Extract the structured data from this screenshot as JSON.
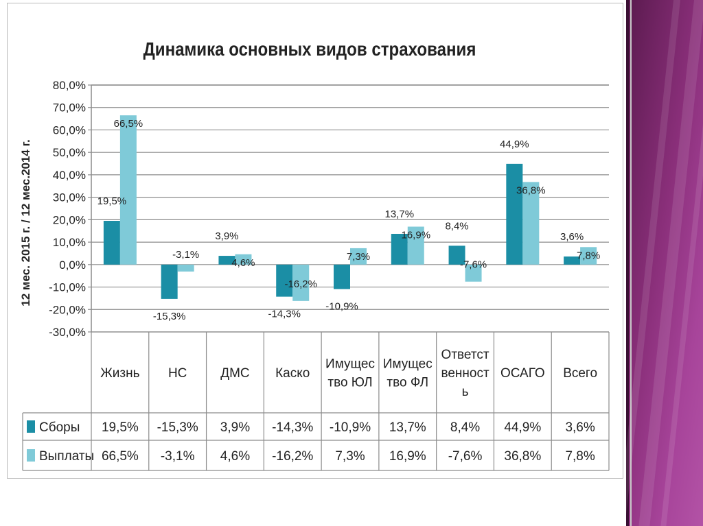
{
  "chart_data": {
    "type": "bar",
    "title": "Динамика основных видов страхования",
    "ylabel": "12 мес. 2015 г. / 12 мес.2014 г.",
    "ylim": [
      -30,
      80
    ],
    "ytick_step": 10,
    "ytick_labels": [
      "80,0%",
      "70,0%",
      "60,0%",
      "50,0%",
      "40,0%",
      "30,0%",
      "20,0%",
      "10,0%",
      "0,0%",
      "-10,0%",
      "-20,0%",
      "-30,0%"
    ],
    "grid": true,
    "categories": [
      [
        "Жизнь"
      ],
      [
        "НС"
      ],
      [
        "ДМС"
      ],
      [
        "Каско"
      ],
      [
        "Имущес",
        "тво ЮЛ"
      ],
      [
        "Имущес",
        "тво ФЛ"
      ],
      [
        "Ответст",
        "венност",
        "ь"
      ],
      [
        "ОСАГО"
      ],
      [
        "Всего"
      ]
    ],
    "series": [
      {
        "name": "Сборы",
        "color": "#1b8ea5",
        "values": [
          19.5,
          -15.3,
          3.9,
          -14.3,
          -10.9,
          13.7,
          8.4,
          44.9,
          3.6
        ],
        "labels": [
          "19,5%",
          "-15,3%",
          "3,9%",
          "-14,3%",
          "-10,9%",
          "13,7%",
          "8,4%",
          "44,9%",
          "3,6%"
        ]
      },
      {
        "name": "Выплаты",
        "color": "#7fcad8",
        "values": [
          66.5,
          -3.1,
          4.6,
          -16.2,
          7.3,
          16.9,
          -7.6,
          36.8,
          7.8
        ],
        "labels": [
          "66,5%",
          "-3,1%",
          "4,6%",
          "-16,2%",
          "7,3%",
          "16,9%",
          "-7,6%",
          "36,8%",
          "7,8%"
        ]
      }
    ],
    "data_table": true
  }
}
